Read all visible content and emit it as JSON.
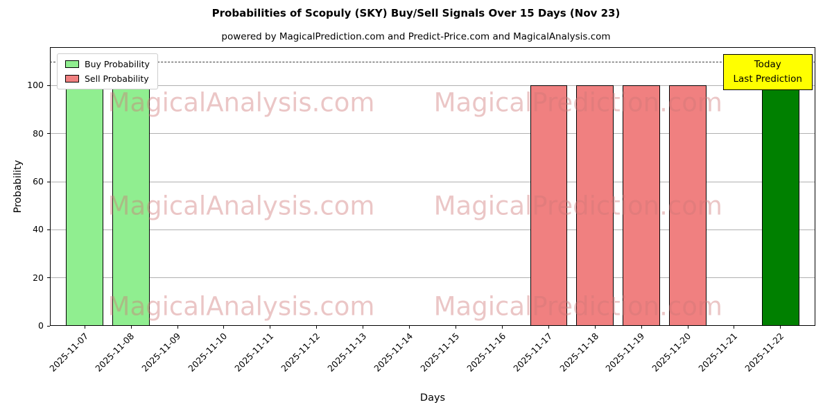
{
  "chart_data": {
    "type": "bar",
    "title": "Probabilities of Scopuly (SKY) Buy/Sell Signals Over 15 Days (Nov 23)",
    "subtitle": "powered by MagicalPrediction.com and Predict-Price.com and MagicalAnalysis.com",
    "xlabel": "Days",
    "ylabel": "Probability",
    "ylim": [
      0,
      116
    ],
    "yticks": [
      0,
      20,
      40,
      60,
      80,
      100
    ],
    "dashed_guide_y": 110,
    "grid": "horizontal",
    "legend_position": "upper-left",
    "categories": [
      "2025-11-07",
      "2025-11-08",
      "2025-11-09",
      "2025-11-10",
      "2025-11-11",
      "2025-11-12",
      "2025-11-13",
      "2025-11-14",
      "2025-11-15",
      "2025-11-16",
      "2025-11-17",
      "2025-11-18",
      "2025-11-19",
      "2025-11-20",
      "2025-11-21",
      "2025-11-22"
    ],
    "series": [
      {
        "name": "Buy Probability",
        "color": "#90ee90",
        "values": [
          100,
          100,
          0,
          0,
          0,
          0,
          0,
          0,
          0,
          0,
          0,
          0,
          0,
          0,
          0,
          0
        ]
      },
      {
        "name": "Sell Probability",
        "color": "#f08080",
        "values": [
          0,
          0,
          0,
          0,
          0,
          0,
          0,
          0,
          0,
          0,
          100,
          100,
          100,
          100,
          0,
          0
        ]
      },
      {
        "name": "Today Last Prediction",
        "color": "#008000",
        "values": [
          0,
          0,
          0,
          0,
          0,
          0,
          0,
          0,
          0,
          0,
          0,
          0,
          0,
          0,
          0,
          100
        ]
      }
    ],
    "bar_edge_color": "#000000"
  },
  "legend": {
    "items": [
      {
        "label": "Buy Probability",
        "color": "#90ee90"
      },
      {
        "label": "Sell Probability",
        "color": "#f08080"
      }
    ]
  },
  "annotation_box": {
    "line1": "Today",
    "line2": "Last Prediction",
    "bg_color": "#ffff00"
  },
  "watermarks": {
    "left_text": "MagicalAnalysis.com",
    "right_text": "MagicalPrediction.com"
  }
}
